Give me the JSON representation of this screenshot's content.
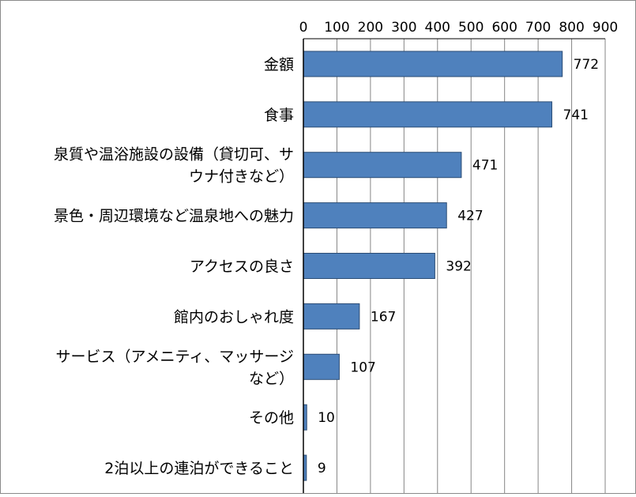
{
  "chart_data": {
    "type": "bar",
    "orientation": "horizontal",
    "categories": [
      "金額",
      "食事",
      "泉質や温浴施設の設備（貸切可、サウナ付きなど）",
      "景色・周辺環境など温泉地への魅力",
      "アクセスの良さ",
      "館内のおしゃれ度",
      "サービス（アメニティ、マッサージなど）",
      "その他",
      "2泊以上の連泊ができること"
    ],
    "category_lines": [
      [
        "金額"
      ],
      [
        "食事"
      ],
      [
        "泉質や温浴施設の設備（貸切可、サ",
        "ウナ付きなど）"
      ],
      [
        "景色・周辺環境など温泉地への魅力"
      ],
      [
        "アクセスの良さ"
      ],
      [
        "館内のおしゃれ度"
      ],
      [
        "サービス（アメニティ、マッサージ",
        "など）"
      ],
      [
        "その他"
      ],
      [
        "2泊以上の連泊ができること"
      ]
    ],
    "values": [
      772,
      741,
      471,
      427,
      392,
      167,
      107,
      10,
      9
    ],
    "data_labels": [
      "772",
      "741",
      "471",
      "427",
      "392",
      "167",
      "107",
      "10",
      "9"
    ],
    "xlim": [
      0,
      900
    ],
    "x_ticks": [
      "0",
      "100",
      "200",
      "300",
      "400",
      "500",
      "600",
      "700",
      "800",
      "900"
    ],
    "x_axis_position": "top",
    "grid": "vertical",
    "legend": "none",
    "colors": {
      "bar_fill": "#4f81bd",
      "bar_stroke": "#2c4d75",
      "gridline": "#868686",
      "axis": "#000000"
    }
  }
}
